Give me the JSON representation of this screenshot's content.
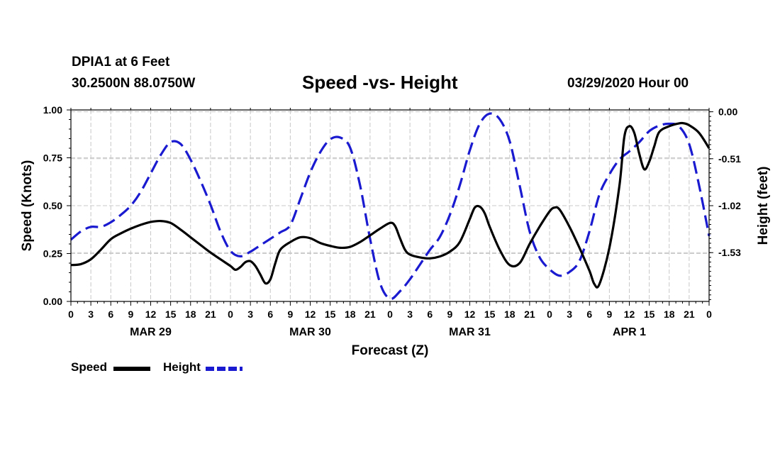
{
  "header": {
    "station": "DPIA1 at 6 Feet",
    "coordinates": "30.2500N 88.0750W",
    "title": "Speed -vs- Height",
    "run": "03/29/2020 Hour 00"
  },
  "legend": {
    "speed": "Speed",
    "height": "Height"
  },
  "colors": {
    "speed": "#000000",
    "height": "#1a1ad0",
    "grid": "#c8c8c8"
  },
  "chart_data": {
    "type": "line",
    "title": "Speed -vs- Height",
    "xlabel": "Forecast (Z)",
    "ylabel_left": "Speed (Knots)",
    "ylabel_right": "Height (feet)",
    "x_unit": "forecast hour",
    "xlim": [
      0,
      96
    ],
    "x_ticks": [
      0,
      3,
      6,
      9,
      12,
      15,
      18,
      21,
      24,
      27,
      30,
      33,
      36,
      39,
      42,
      45,
      48,
      51,
      54,
      57,
      60,
      63,
      66,
      69,
      72,
      75,
      78,
      81,
      84,
      87,
      90,
      93,
      96
    ],
    "x_tick_labels": [
      "0",
      "3",
      "6",
      "9",
      "12",
      "15",
      "18",
      "21",
      "0",
      "3",
      "6",
      "9",
      "12",
      "15",
      "18",
      "21",
      "0",
      "3",
      "6",
      "9",
      "12",
      "15",
      "18",
      "21",
      "0",
      "3",
      "6",
      "9",
      "12",
      "15",
      "18",
      "21",
      "0"
    ],
    "day_labels": [
      {
        "hour": 12,
        "label": "MAR 29"
      },
      {
        "hour": 36,
        "label": "MAR 30"
      },
      {
        "hour": 60,
        "label": "MAR 31"
      },
      {
        "hour": 84,
        "label": "APR 1"
      }
    ],
    "ylim_left": [
      0,
      1
    ],
    "y_ticks_left": [
      0,
      0.25,
      0.5,
      0.75,
      1
    ],
    "y_tick_labels_left": [
      "0.00",
      "0.25",
      "0.50",
      "0.75",
      "1.00"
    ],
    "ylim_right": [
      -2.06,
      0.02
    ],
    "y_ticks_right": [
      0,
      -0.51,
      -1.02,
      -1.53
    ],
    "y_tick_labels_right": [
      "0.00",
      "-0.51",
      "-1.02",
      "-1.53"
    ],
    "grid": true,
    "series": [
      {
        "name": "Speed",
        "axis": "left",
        "style": "solid",
        "x": [
          0,
          1.5,
          3,
          4.5,
          6,
          7.5,
          9,
          10.5,
          12,
          13.5,
          15,
          16.5,
          18,
          19.5,
          21,
          22.5,
          24,
          24.75,
          25.5,
          26.25,
          27,
          27.75,
          28.5,
          29.25,
          30,
          30.75,
          31.5,
          33,
          34.5,
          36,
          37.5,
          39,
          40.5,
          42,
          43.5,
          45,
          46.5,
          48,
          48.75,
          49.5,
          50.25,
          51,
          52.5,
          54,
          55.5,
          57,
          58.5,
          60,
          60.75,
          61.5,
          62.25,
          63,
          64.5,
          66,
          67.5,
          69,
          70.5,
          72,
          72.75,
          73.5,
          75,
          76.5,
          78,
          78.75,
          79.5,
          81,
          82.5,
          83.25,
          84,
          84.75,
          85.5,
          86.25,
          87,
          87.75,
          88.5,
          90,
          91.5,
          92.25,
          93,
          94.5,
          96
        ],
        "y": [
          0.19,
          0.195,
          0.22,
          0.27,
          0.325,
          0.355,
          0.38,
          0.4,
          0.415,
          0.42,
          0.41,
          0.375,
          0.335,
          0.295,
          0.255,
          0.22,
          0.185,
          0.165,
          0.18,
          0.205,
          0.21,
          0.185,
          0.14,
          0.095,
          0.115,
          0.2,
          0.27,
          0.31,
          0.335,
          0.33,
          0.305,
          0.29,
          0.28,
          0.285,
          0.31,
          0.345,
          0.38,
          0.41,
          0.395,
          0.33,
          0.27,
          0.245,
          0.23,
          0.225,
          0.235,
          0.26,
          0.31,
          0.43,
          0.49,
          0.495,
          0.46,
          0.39,
          0.27,
          0.19,
          0.2,
          0.3,
          0.39,
          0.47,
          0.49,
          0.48,
          0.39,
          0.28,
          0.16,
          0.09,
          0.09,
          0.28,
          0.6,
          0.86,
          0.915,
          0.88,
          0.77,
          0.69,
          0.73,
          0.81,
          0.885,
          0.915,
          0.93,
          0.93,
          0.92,
          0.88,
          0.8
        ]
      },
      {
        "name": "Height",
        "axis": "right",
        "style": "dashed",
        "x": [
          0,
          1.5,
          3,
          4.5,
          6,
          7.5,
          9,
          10.5,
          12,
          13.5,
          15,
          16.5,
          18,
          19.5,
          21,
          22.5,
          24,
          25.5,
          27,
          28.5,
          30,
          31.5,
          33,
          34.5,
          36,
          37.5,
          39,
          40.5,
          42,
          43.5,
          45,
          46.5,
          48,
          49.5,
          51,
          52.5,
          54,
          55.5,
          57,
          58.5,
          60,
          61.5,
          63,
          64.5,
          66,
          67.5,
          69,
          70.5,
          72,
          73.5,
          75,
          76.5,
          78,
          79.5,
          81,
          82.5,
          84,
          85.5,
          87,
          88.5,
          90,
          91.5,
          93,
          94.5,
          96
        ],
        "y": [
          -1.39,
          -1.3,
          -1.25,
          -1.25,
          -1.2,
          -1.12,
          -1.02,
          -0.87,
          -0.67,
          -0.47,
          -0.33,
          -0.35,
          -0.52,
          -0.75,
          -1.01,
          -1.3,
          -1.51,
          -1.57,
          -1.52,
          -1.45,
          -1.38,
          -1.31,
          -1.23,
          -0.95,
          -0.66,
          -0.44,
          -0.3,
          -0.28,
          -0.39,
          -0.8,
          -1.38,
          -1.86,
          -2.03,
          -1.95,
          -1.82,
          -1.66,
          -1.5,
          -1.36,
          -1.12,
          -0.8,
          -0.42,
          -0.13,
          -0.02,
          -0.08,
          -0.32,
          -0.8,
          -1.3,
          -1.58,
          -1.71,
          -1.78,
          -1.74,
          -1.62,
          -1.3,
          -0.9,
          -0.68,
          -0.52,
          -0.43,
          -0.33,
          -0.21,
          -0.15,
          -0.13,
          -0.16,
          -0.35,
          -0.8,
          -1.35
        ]
      }
    ]
  }
}
